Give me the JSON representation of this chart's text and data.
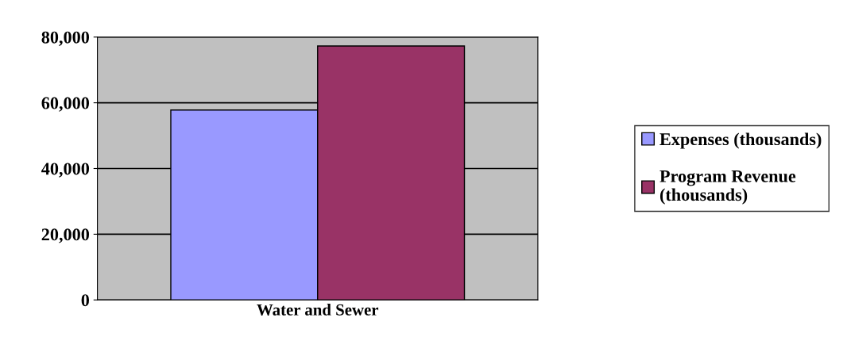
{
  "chart_data": {
    "type": "bar",
    "categories": [
      "Water and Sewer"
    ],
    "series": [
      {
        "name": "Expenses (thousands)",
        "color": "#9999ff",
        "values": [
          57800
        ]
      },
      {
        "name": "Program Revenue\n(thousands)",
        "color": "#993366",
        "values": [
          77300
        ]
      }
    ],
    "ylim": [
      0,
      80000
    ],
    "yticks": [
      {
        "value": 0,
        "label": "0"
      },
      {
        "value": 20000,
        "label": "20,000"
      },
      {
        "value": 40000,
        "label": "40,000"
      },
      {
        "value": 60000,
        "label": "60,000"
      },
      {
        "value": 80000,
        "label": "80,000"
      }
    ],
    "grid": "y",
    "legend": "right"
  }
}
